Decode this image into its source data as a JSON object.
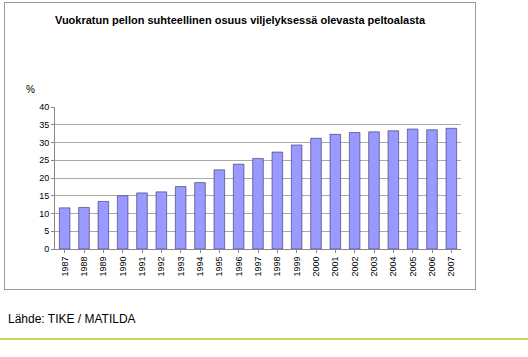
{
  "chart_data": {
    "type": "bar",
    "title": "Vuokratun pellon suhteellinen osuus viljelyksessä olevasta peltoalasta",
    "y_label": "%",
    "source": "Lähde: TIKE / MATILDA",
    "categories": [
      "1987",
      "1988",
      "1989",
      "1990",
      "1991",
      "1992",
      "1993",
      "1994",
      "1995",
      "1996",
      "1997",
      "1998",
      "1999",
      "2000",
      "2001",
      "2002",
      "2003",
      "2004",
      "2005",
      "2006",
      "2007"
    ],
    "values": [
      11.6,
      11.7,
      13.4,
      15.0,
      15.8,
      16.1,
      17.6,
      18.7,
      22.3,
      23.9,
      25.5,
      27.3,
      29.3,
      31.2,
      32.3,
      32.8,
      33.0,
      33.3,
      33.8,
      33.6,
      34.0
    ],
    "color": "#9999ff",
    "ylim": [
      0,
      40
    ],
    "yticks": [
      0,
      5,
      10,
      15,
      20,
      25,
      30,
      35,
      40
    ],
    "grid": true
  }
}
